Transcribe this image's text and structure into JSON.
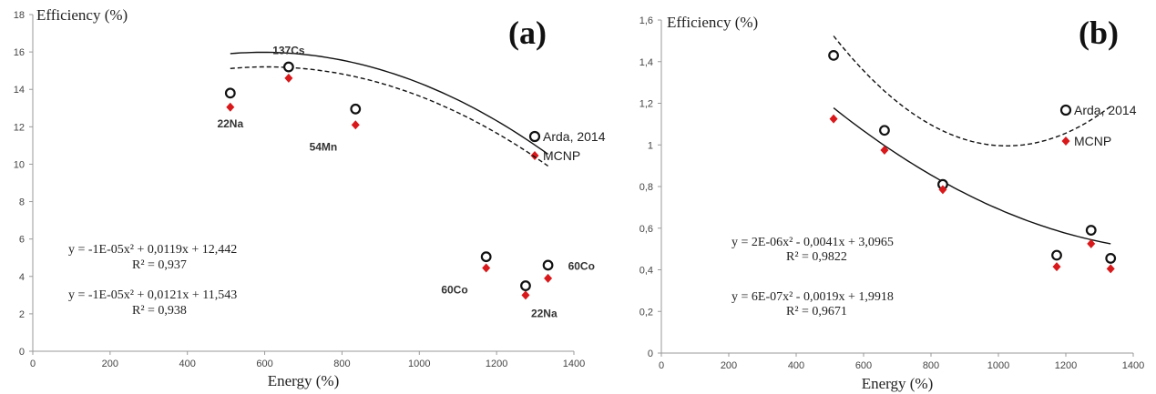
{
  "colors": {
    "axis": "#9a9a9a",
    "fit": "#111111",
    "open_marker": "#111111",
    "mcnp": "#d7191c"
  },
  "chart_data": [
    {
      "type": "scatter",
      "panel_label": "(a)",
      "xlabel": "Energy (%)",
      "ylabel": "Efficiency (%)",
      "xlim": [
        0,
        1400
      ],
      "ylim": [
        0,
        18
      ],
      "xticks": [
        "0",
        "200",
        "400",
        "600",
        "800",
        "1000",
        "1200",
        "1400"
      ],
      "yticks": [
        "0",
        "2",
        "4",
        "6",
        "8",
        "10",
        "12",
        "14",
        "16",
        "18"
      ],
      "grid": false,
      "legend_position": "right",
      "series": [
        {
          "name": "Arda, 2014",
          "marker": "open-circle",
          "x": [
            511,
            662,
            835,
            1173,
            1275,
            1333
          ],
          "y": [
            13.8,
            15.2,
            12.95,
            5.05,
            3.5,
            4.6
          ]
        },
        {
          "name": "MCNP",
          "marker": "diamond",
          "x": [
            511,
            662,
            835,
            1173,
            1275,
            1333
          ],
          "y": [
            13.05,
            14.6,
            12.1,
            4.45,
            3.0,
            3.9
          ]
        }
      ],
      "point_labels": [
        {
          "text": "22Na",
          "x": 511,
          "y": 13.05,
          "placement": "below"
        },
        {
          "text": "137Cs",
          "x": 662,
          "y": 15.2,
          "placement": "above"
        },
        {
          "text": "54Mn",
          "x": 835,
          "y": 12.1,
          "placement": "below-left"
        },
        {
          "text": "60Co",
          "x": 1173,
          "y": 4.45,
          "placement": "below-left"
        },
        {
          "text": "22Na",
          "x": 1275,
          "y": 3.0,
          "placement": "below-right"
        },
        {
          "text": "60Co",
          "x": 1333,
          "y": 4.6,
          "placement": "right"
        }
      ],
      "fits": [
        {
          "style": "dashed",
          "coeffs": [
            -1e-05,
            0.0121,
            11.543
          ],
          "xrange": [
            511,
            1333
          ]
        },
        {
          "style": "solid",
          "coeffs": [
            -1e-05,
            0.0119,
            12.442
          ],
          "xrange": [
            511,
            1333
          ]
        }
      ],
      "equations": [
        {
          "formula": "y = -1E-05x² + 0,0119x + 12,442",
          "r2": "R² = 0,937"
        },
        {
          "formula": "y = -1E-05x² + 0,0121x + 11,543",
          "r2": "R² = 0,938"
        }
      ]
    },
    {
      "type": "scatter",
      "panel_label": "(b)",
      "xlabel": "Energy (%)",
      "ylabel": "Efficiency (%)",
      "xlim": [
        0,
        1400
      ],
      "ylim": [
        0,
        1.6
      ],
      "xticks": [
        "0",
        "200",
        "400",
        "600",
        "800",
        "1000",
        "1200",
        "1400"
      ],
      "yticks": [
        "0",
        "0,2",
        "0,4",
        "0,6",
        "0,8",
        "1",
        "1,2",
        "1,4",
        "1,6"
      ],
      "grid": false,
      "legend_position": "right",
      "series": [
        {
          "name": "Arda, 2014",
          "marker": "open-circle",
          "x": [
            511,
            662,
            835,
            1173,
            1275,
            1333
          ],
          "y": [
            1.43,
            1.07,
            0.81,
            0.47,
            0.59,
            0.455
          ]
        },
        {
          "name": "MCNP",
          "marker": "diamond",
          "x": [
            511,
            662,
            835,
            1173,
            1275,
            1333
          ],
          "y": [
            1.125,
            0.975,
            0.785,
            0.415,
            0.525,
            0.405
          ]
        }
      ],
      "point_labels": [],
      "fits": [
        {
          "style": "dashed",
          "coeffs": [
            2e-06,
            -0.0041,
            3.0965
          ],
          "xrange": [
            511,
            1333
          ]
        },
        {
          "style": "solid",
          "coeffs": [
            6e-07,
            -0.0019,
            1.9918
          ],
          "xrange": [
            511,
            1333
          ]
        }
      ],
      "equations": [
        {
          "formula": "y = 2E-06x² - 0,0041x + 3,0965",
          "r2": "R² = 0,9822"
        },
        {
          "formula": "y = 6E-07x² - 0,0019x + 1,9918",
          "r2": "R² = 0,9671"
        }
      ]
    }
  ]
}
